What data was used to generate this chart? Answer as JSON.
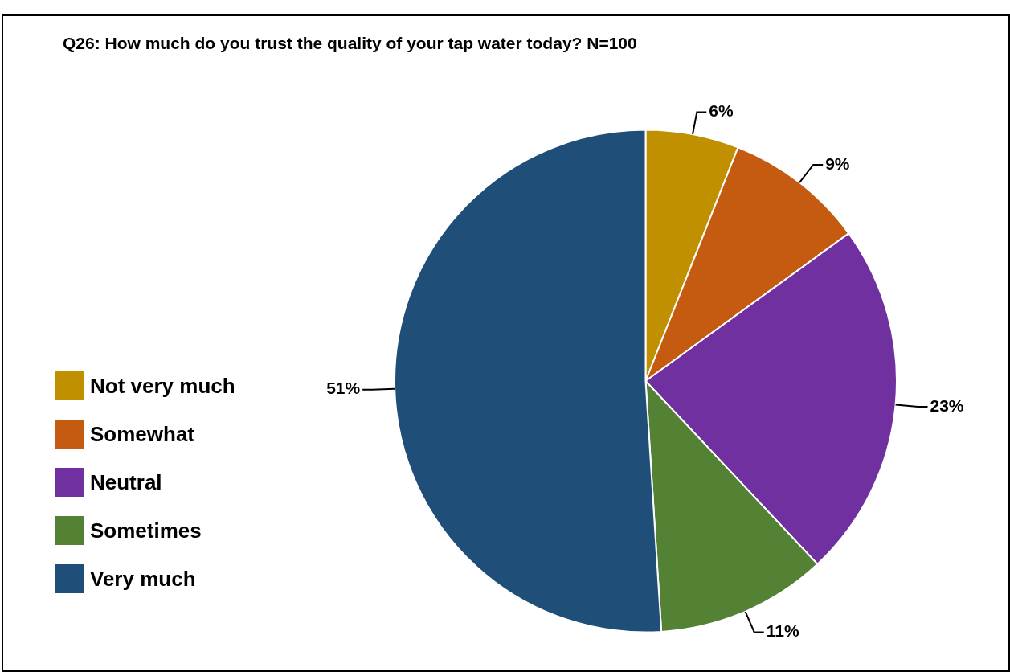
{
  "chart_data": {
    "type": "pie",
    "title": "Q26: How much do you trust the quality of your tap water today? N=100",
    "categories": [
      "Not very much",
      "Somewhat",
      "Neutral",
      "Sometimes",
      "Very much"
    ],
    "values": [
      6,
      9,
      23,
      11,
      51
    ],
    "colors": [
      "#c09000",
      "#c55a11",
      "#7030a0",
      "#548235",
      "#1f4e79"
    ],
    "value_labels": [
      "6%",
      "9%",
      "23%",
      "11%",
      "51%"
    ],
    "legend": "left"
  }
}
